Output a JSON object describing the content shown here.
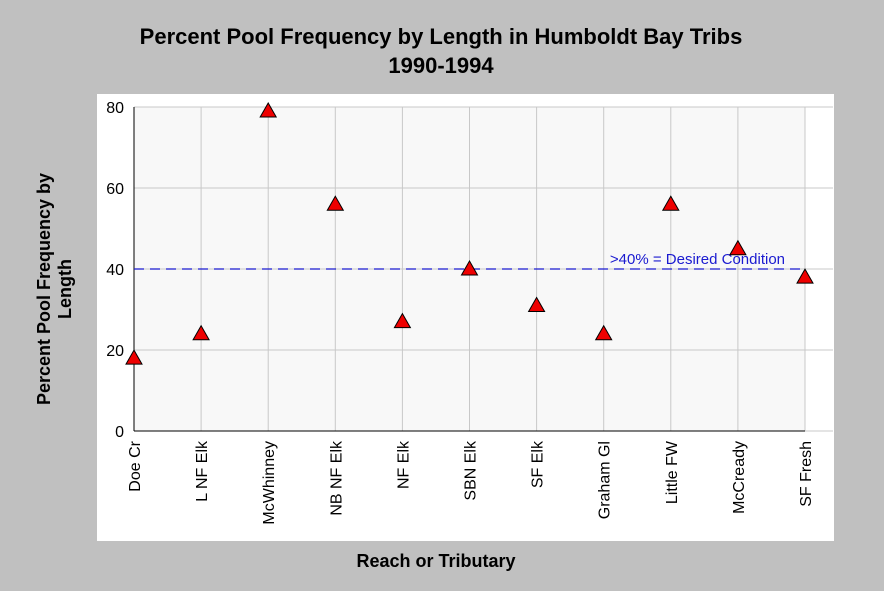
{
  "chart_data": {
    "type": "scatter",
    "title": "Percent Pool Frequency by Length in Humboldt Bay Tribs",
    "subtitle": "1990-1994",
    "xlabel": "Reach or Tributary",
    "ylabel": "Percent Pool Frequency by Length",
    "ylim": [
      0,
      80
    ],
    "yticks": [
      "0",
      "20",
      "40",
      "60",
      "80"
    ],
    "grid": true,
    "categories": [
      "Doe Cr",
      "L NF Elk",
      "McWhinney",
      "NB NF Elk",
      "NF Elk",
      "SBN Elk",
      "SF Elk",
      "Graham Gl",
      "Little FW",
      "McCready",
      "SF Fresh"
    ],
    "values": [
      18,
      24,
      79,
      56,
      27,
      40,
      31,
      24,
      56,
      45,
      38
    ],
    "marker": "triangle",
    "marker_color": "#ee0000",
    "reference_line": {
      "y": 40,
      "label": ">40% = Desired Condition",
      "color": "#1a1ad0"
    }
  },
  "colors": {
    "frame_bg": "#c0c0c0",
    "panel_bg": "#ffffff",
    "plot_bg": "#f8f8f8",
    "grid": "#c8c8c8"
  }
}
